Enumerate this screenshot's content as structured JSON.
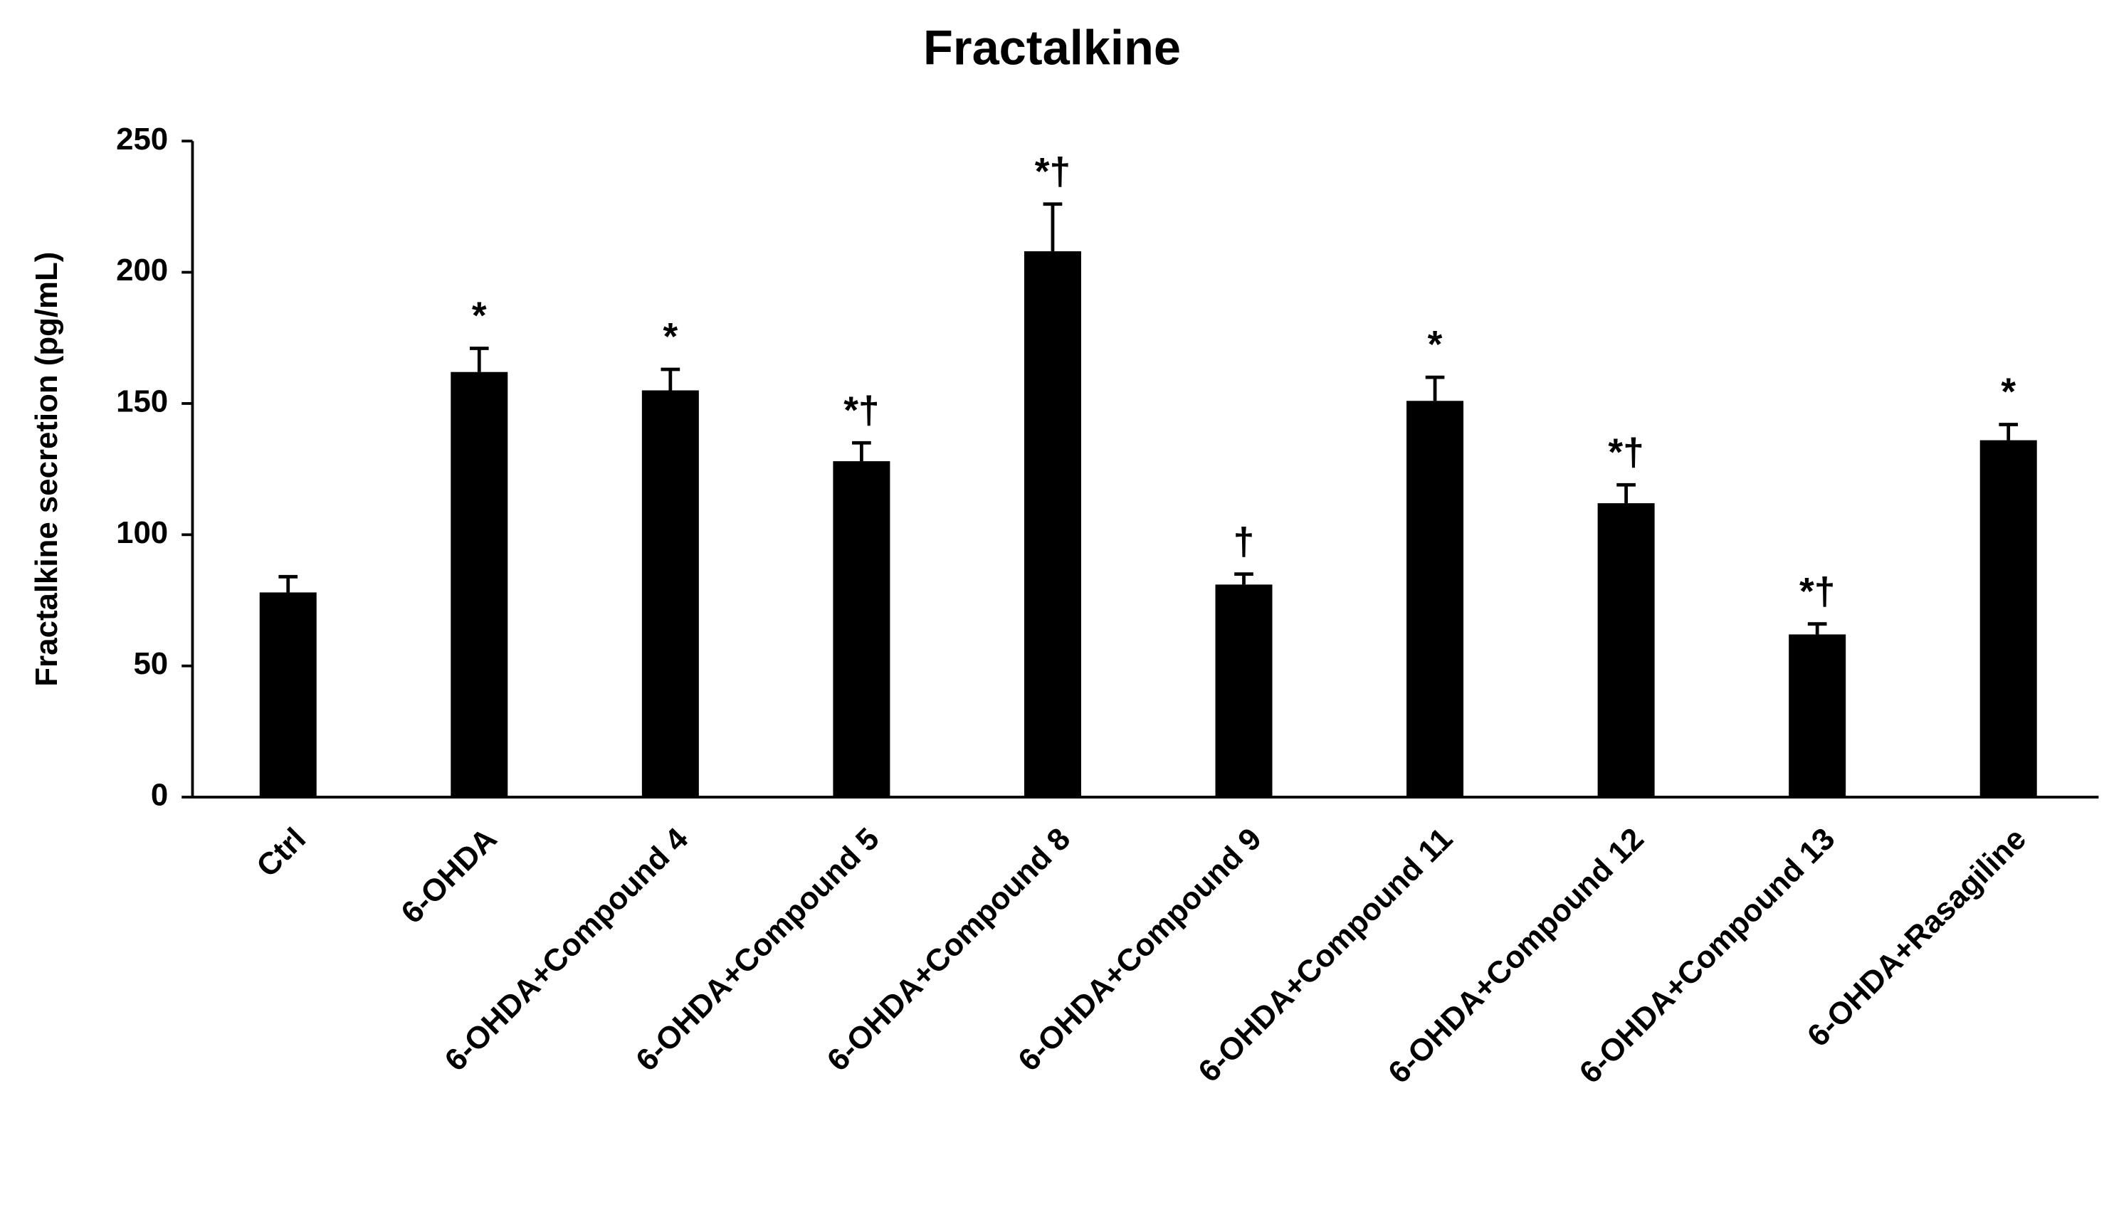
{
  "chart_data": {
    "type": "bar",
    "title": "Fractalkine",
    "y_label": "Fractalkine secretion (pg/mL)",
    "categories": [
      "Ctrl",
      "6-OHDA",
      "6-OHDA+Compound 4",
      "6-OHDA+Compound 5",
      "6-OHDA+Compound 8",
      "6-OHDA+Compound 9",
      "6-OHDA+Compound 11",
      "6-OHDA+Compound 12",
      "6-OHDA+Compound 13",
      "6-OHDA+Rasagiline"
    ],
    "values": [
      78,
      162,
      155,
      128,
      208,
      81,
      151,
      112,
      62,
      136
    ],
    "errors": [
      6,
      9,
      8,
      7,
      18,
      4,
      9,
      7,
      4,
      6
    ],
    "annotations": [
      null,
      "*",
      "*",
      "*†",
      "*†",
      "†",
      "*",
      "*†",
      "*†",
      "*"
    ],
    "color": "#000000",
    "ylim": [
      0,
      250
    ],
    "yticks": [
      0,
      50,
      100,
      150,
      200,
      250
    ],
    "grid": false
  }
}
